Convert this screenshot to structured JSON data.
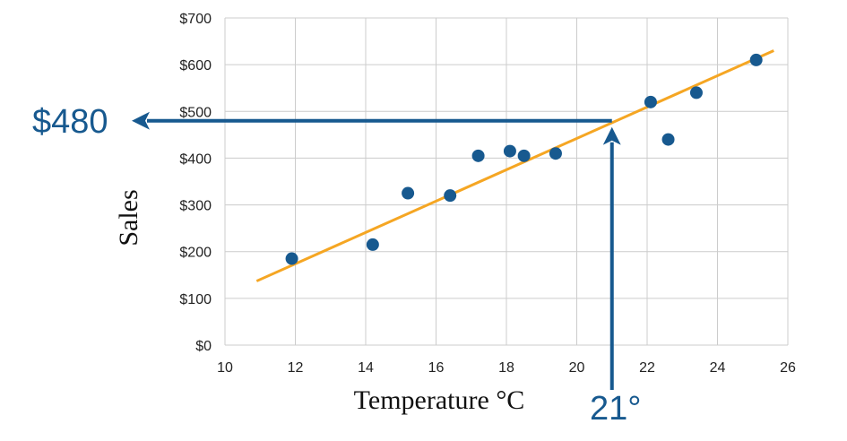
{
  "chart_data": {
    "type": "scatter",
    "xlabel": "Temperature °C",
    "ylabel": "Sales",
    "xlim": [
      10,
      26
    ],
    "ylim": [
      0,
      700
    ],
    "x_ticks": [
      10,
      12,
      14,
      16,
      18,
      20,
      22,
      24,
      26
    ],
    "y_ticks": [
      0,
      100,
      200,
      300,
      400,
      500,
      600,
      700
    ],
    "y_tick_labels": [
      "$0",
      "$100",
      "$200",
      "$300",
      "$400",
      "$500",
      "$600",
      "$700"
    ],
    "grid": true,
    "colors": {
      "points": "#17598f",
      "trendline": "#f5a623",
      "annotation": "#17598f",
      "grid": "#cccccc"
    },
    "points": [
      {
        "x": 11.9,
        "y": 185
      },
      {
        "x": 14.2,
        "y": 215
      },
      {
        "x": 15.2,
        "y": 325
      },
      {
        "x": 16.4,
        "y": 320
      },
      {
        "x": 17.2,
        "y": 405
      },
      {
        "x": 18.1,
        "y": 415
      },
      {
        "x": 18.5,
        "y": 405
      },
      {
        "x": 19.4,
        "y": 410
      },
      {
        "x": 22.1,
        "y": 520
      },
      {
        "x": 22.6,
        "y": 440
      },
      {
        "x": 23.4,
        "y": 540
      },
      {
        "x": 25.1,
        "y": 610
      }
    ],
    "trendline": {
      "x1": 10.9,
      "y1": 137,
      "x2": 25.6,
      "y2": 630
    },
    "annotation": {
      "x_value": 21,
      "y_value": 480,
      "x_label": "21°",
      "y_label": "$480"
    }
  }
}
